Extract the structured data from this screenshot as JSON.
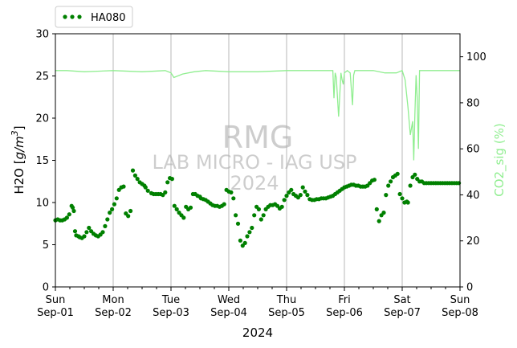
{
  "chart_data": {
    "type": "line",
    "title": "",
    "xlabel": "2024",
    "ylabel": "H2O [g/m³]",
    "ylabel_parts": {
      "main": "H2O [",
      "unit": "g/m",
      "sup": "3",
      "close": "]"
    },
    "y2label": "CO2_sig (%)",
    "ylim": [
      0,
      30
    ],
    "y2lim": [
      0,
      110
    ],
    "xlim": [
      "2024-09-01",
      "2024-09-08"
    ],
    "grid": "vertical at day boundaries",
    "legend_position": "top-left, above plot",
    "yticks": [
      0,
      5,
      10,
      15,
      20,
      25,
      30
    ],
    "y2ticks": [
      0,
      20,
      40,
      60,
      80,
      100
    ],
    "xticks": [
      {
        "day": "Sun",
        "date": "Sep-01"
      },
      {
        "day": "Mon",
        "date": "Sep-02"
      },
      {
        "day": "Tue",
        "date": "Sep-03"
      },
      {
        "day": "Wed",
        "date": "Sep-04"
      },
      {
        "day": "Thu",
        "date": "Sep-05"
      },
      {
        "day": "Fri",
        "date": "Sep-06"
      },
      {
        "day": "Sat",
        "date": "Sep-07"
      },
      {
        "day": "Sun",
        "date": "Sep-08"
      }
    ],
    "watermark": [
      "RMG",
      "LAB MICRO - IAG USP",
      "2024"
    ],
    "colors": {
      "h2o": "#008000",
      "co2": "#90ee90",
      "grid": "#b0b0b0"
    },
    "series": [
      {
        "name": "HA080",
        "axis": "left",
        "style": "dotted markers",
        "x": [
          0.0,
          0.04,
          0.08,
          0.12,
          0.16,
          0.2,
          0.24,
          0.28,
          0.3,
          0.32,
          0.34,
          0.36,
          0.4,
          0.42,
          0.46,
          0.5,
          0.54,
          0.58,
          0.62,
          0.66,
          0.7,
          0.74,
          0.78,
          0.82,
          0.86,
          0.9,
          0.94,
          0.98,
          1.02,
          1.06,
          1.1,
          1.14,
          1.18,
          1.22,
          1.26,
          1.3,
          1.34,
          1.38,
          1.42,
          1.46,
          1.5,
          1.54,
          1.56,
          1.6,
          1.66,
          1.7,
          1.74,
          1.78,
          1.82,
          1.86,
          1.9,
          1.94,
          1.98,
          2.02,
          2.06,
          2.1,
          2.14,
          2.18,
          2.22,
          2.26,
          2.3,
          2.34,
          2.38,
          2.42,
          2.46,
          2.5,
          2.52,
          2.56,
          2.6,
          2.64,
          2.68,
          2.72,
          2.76,
          2.8,
          2.84,
          2.88,
          2.92,
          2.96,
          3.0,
          3.04,
          3.08,
          3.12,
          3.16,
          3.2,
          3.24,
          3.28,
          3.32,
          3.36,
          3.4,
          3.44,
          3.48,
          3.52,
          3.56,
          3.6,
          3.64,
          3.68,
          3.72,
          3.76,
          3.8,
          3.84,
          3.88,
          3.92,
          3.96,
          4.0,
          4.04,
          4.08,
          4.12,
          4.16,
          4.2,
          4.24,
          4.28,
          4.32,
          4.36,
          4.4,
          4.44,
          4.48,
          4.52,
          4.56,
          4.6,
          4.64,
          4.68,
          4.72,
          4.76,
          4.8,
          4.84,
          4.88,
          4.92,
          4.96,
          5.0,
          5.04,
          5.08,
          5.12,
          5.16,
          5.2,
          5.24,
          5.28,
          5.32,
          5.36,
          5.4,
          5.44,
          5.48,
          5.52,
          5.56,
          5.6,
          5.64,
          5.68,
          5.72,
          5.76,
          5.8,
          5.84,
          5.88,
          5.92,
          5.96,
          6.0,
          6.04,
          6.08,
          6.1,
          6.14,
          6.18,
          6.22,
          6.26,
          6.3,
          6.34,
          6.38,
          6.42,
          6.46,
          6.5,
          6.54,
          6.58,
          6.62,
          6.66,
          6.7,
          6.74,
          6.78,
          6.82,
          6.86,
          6.9,
          6.94,
          6.98
        ],
        "values": [
          7.9,
          8.0,
          7.9,
          7.9,
          8.0,
          8.2,
          8.6,
          9.6,
          9.4,
          9.0,
          6.6,
          6.1,
          6.0,
          5.9,
          5.8,
          6.0,
          6.5,
          7.0,
          6.6,
          6.3,
          6.1,
          6.0,
          6.2,
          6.5,
          7.2,
          8.0,
          8.8,
          9.2,
          9.8,
          10.5,
          11.5,
          11.8,
          11.9,
          8.7,
          8.4,
          9.0,
          13.8,
          13.2,
          12.8,
          12.4,
          12.2,
          12.0,
          11.8,
          11.4,
          11.1,
          11.0,
          11.0,
          11.0,
          11.0,
          10.9,
          11.2,
          12.4,
          12.9,
          12.8,
          9.6,
          9.2,
          8.8,
          8.5,
          8.2,
          9.5,
          9.2,
          9.4,
          11.0,
          11.0,
          10.8,
          10.7,
          10.5,
          10.4,
          10.3,
          10.1,
          9.9,
          9.7,
          9.6,
          9.6,
          9.5,
          9.6,
          9.8,
          11.5,
          11.3,
          11.2,
          10.5,
          8.5,
          7.5,
          5.5,
          4.9,
          5.2,
          6.0,
          6.5,
          7.0,
          8.5,
          9.5,
          9.2,
          8.0,
          8.5,
          9.2,
          9.5,
          9.7,
          9.7,
          9.8,
          9.6,
          9.3,
          9.5,
          10.3,
          10.8,
          11.2,
          11.5,
          11.0,
          10.8,
          10.6,
          10.9,
          11.8,
          11.3,
          10.9,
          10.4,
          10.3,
          10.3,
          10.4,
          10.4,
          10.5,
          10.5,
          10.5,
          10.6,
          10.7,
          10.8,
          11.0,
          11.2,
          11.4,
          11.6,
          11.8,
          11.9,
          12.0,
          12.1,
          12.1,
          12.0,
          12.0,
          11.9,
          11.9,
          11.9,
          12.0,
          12.3,
          12.6,
          12.7,
          9.2,
          7.8,
          8.5,
          8.8,
          10.9,
          12.0,
          12.5,
          13.0,
          13.2,
          13.4,
          11.0,
          10.5,
          10.0,
          10.1,
          10.0,
          12.0,
          13.0,
          13.3,
          12.8,
          12.5,
          12.5,
          12.3,
          12.3,
          12.3,
          12.3,
          12.3,
          12.3,
          12.3,
          12.3,
          12.3,
          12.3,
          12.3,
          12.3,
          12.3,
          12.3,
          12.3,
          12.3
        ]
      },
      {
        "name": "",
        "axis": "right",
        "style": "line",
        "x": [
          0,
          0.2,
          0.5,
          1.0,
          1.5,
          1.9,
          2.0,
          2.05,
          2.1,
          2.2,
          2.4,
          2.6,
          3.0,
          3.5,
          4.0,
          4.5,
          4.8,
          4.82,
          4.84,
          4.86,
          4.9,
          4.94,
          4.96,
          4.98,
          5.0,
          5.05,
          5.1,
          5.14,
          5.16,
          5.18,
          5.2,
          5.25,
          5.3,
          5.35,
          5.5,
          5.7,
          5.9,
          6.0,
          6.05,
          6.1,
          6.14,
          6.18,
          6.2,
          6.22,
          6.24,
          6.26,
          6.28,
          6.3,
          6.35,
          6.5,
          7.0
        ],
        "values": [
          94,
          94,
          93.5,
          94,
          93.5,
          94,
          93,
          91,
          91.5,
          92.5,
          93.5,
          94,
          93.5,
          93.5,
          94,
          94,
          94,
          82,
          93,
          91,
          74,
          93,
          90,
          88,
          93,
          94,
          93,
          79,
          92,
          94,
          94,
          94,
          94,
          94,
          94,
          93,
          93,
          94,
          90,
          78,
          66,
          72,
          55,
          75,
          92,
          82,
          60,
          94,
          94,
          94,
          94
        ]
      }
    ]
  }
}
